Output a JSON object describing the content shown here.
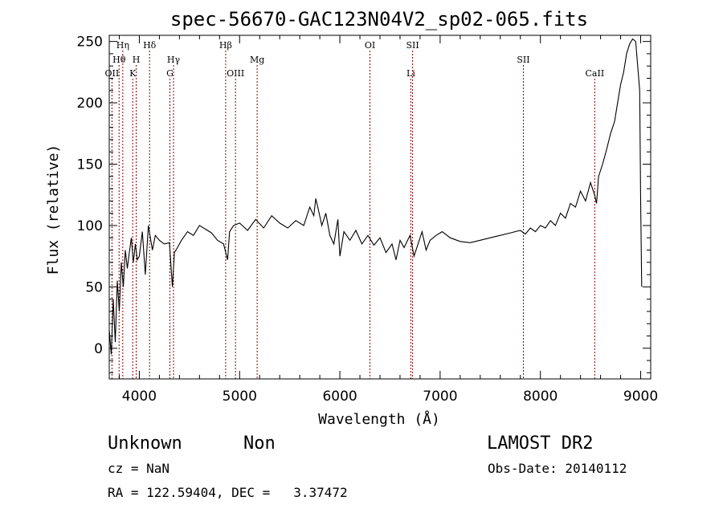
{
  "chart_data": {
    "type": "line",
    "title": "spec-56670-GAC123N04V2_sp02-065.fits",
    "xlabel": "Wavelength (Å)",
    "ylabel": "Flux (relative)",
    "xlim": [
      3700,
      9100
    ],
    "ylim": [
      -25,
      255
    ],
    "xticks": [
      4000,
      5000,
      6000,
      7000,
      8000,
      9000
    ],
    "yticks": [
      0,
      50,
      100,
      150,
      200,
      250
    ],
    "grid": false,
    "line_color": "#000000",
    "marker_color": "#8b0000",
    "series": [
      {
        "x": [
          3700,
          3720,
          3740,
          3760,
          3780,
          3800,
          3820,
          3840,
          3860,
          3880,
          3900,
          3920,
          3940,
          3960,
          3980,
          4000,
          4030,
          4060,
          4090,
          4110,
          4130,
          4160,
          4200,
          4250,
          4300,
          4330,
          4350,
          4380,
          4420,
          4480,
          4540,
          4600,
          4660,
          4720,
          4780,
          4840,
          4880,
          4900,
          4940,
          5000,
          5080,
          5160,
          5240,
          5320,
          5400,
          5480,
          5560,
          5640,
          5700,
          5740,
          5760,
          5780,
          5820,
          5860,
          5900,
          5940,
          5980,
          6000,
          6040,
          6100,
          6160,
          6220,
          6280,
          6340,
          6400,
          6460,
          6520,
          6560,
          6600,
          6640,
          6700,
          6740,
          6780,
          6820,
          6860,
          6900,
          6960,
          7020,
          7100,
          7200,
          7300,
          7400,
          7500,
          7600,
          7700,
          7800,
          7850,
          7900,
          7950,
          8000,
          8050,
          8100,
          8150,
          8200,
          8250,
          8300,
          8350,
          8400,
          8450,
          8500,
          8540,
          8560,
          8580,
          8620,
          8660,
          8700,
          8740,
          8770,
          8800,
          8830,
          8860,
          8890,
          8920,
          8950,
          8970,
          8990,
          9000,
          9010
        ],
        "y": [
          15,
          -5,
          40,
          5,
          55,
          30,
          70,
          50,
          80,
          65,
          78,
          90,
          70,
          85,
          72,
          75,
          95,
          60,
          100,
          90,
          80,
          92,
          88,
          85,
          86,
          50,
          78,
          82,
          88,
          95,
          92,
          100,
          97,
          94,
          88,
          85,
          72,
          95,
          100,
          102,
          96,
          105,
          98,
          108,
          102,
          98,
          104,
          100,
          115,
          108,
          122,
          115,
          100,
          110,
          92,
          85,
          105,
          75,
          95,
          88,
          96,
          85,
          92,
          84,
          90,
          78,
          85,
          72,
          88,
          82,
          92,
          75,
          85,
          95,
          80,
          88,
          92,
          95,
          90,
          87,
          86,
          88,
          90,
          92,
          94,
          96,
          93,
          98,
          95,
          100,
          98,
          104,
          100,
          110,
          106,
          118,
          115,
          128,
          120,
          135,
          125,
          118,
          140,
          150,
          162,
          175,
          185,
          200,
          215,
          225,
          240,
          248,
          252,
          250,
          230,
          210,
          120,
          50
        ]
      }
    ],
    "lines": [
      {
        "x": 3727,
        "label": "OII",
        "row": 3
      },
      {
        "x": 3798,
        "label": "Hθ",
        "row": 2
      },
      {
        "x": 3835,
        "label": "Hη",
        "row": 1
      },
      {
        "x": 3934,
        "label": "K",
        "row": 3
      },
      {
        "x": 3969,
        "label": "H",
        "row": 2
      },
      {
        "x": 4102,
        "label": "Hδ",
        "row": 1
      },
      {
        "x": 4305,
        "label": "G",
        "row": 3
      },
      {
        "x": 4341,
        "label": "Hγ",
        "row": 2
      },
      {
        "x": 4861,
        "label": "Hβ",
        "row": 1
      },
      {
        "x": 4959,
        "label": "OIII",
        "row": 3
      },
      {
        "x": 5175,
        "label": "Mg",
        "row": 2
      },
      {
        "x": 6300,
        "label": "OI",
        "row": 1
      },
      {
        "x": 6708,
        "label": "Li",
        "row": 3
      },
      {
        "x": 6725,
        "label": "SII",
        "row": 1
      },
      {
        "x": 7830,
        "label": "SII",
        "row": 2
      },
      {
        "x": 8542,
        "label": "CaII",
        "row": 3
      }
    ]
  },
  "info": {
    "object_class": "Unknown",
    "object_subclass": "Non",
    "survey": "LAMOST DR2",
    "redshift": "cz = NaN",
    "obs_date": "Obs-Date: 20140112",
    "coords": "RA = 122.59404, DEC =   3.37472"
  }
}
